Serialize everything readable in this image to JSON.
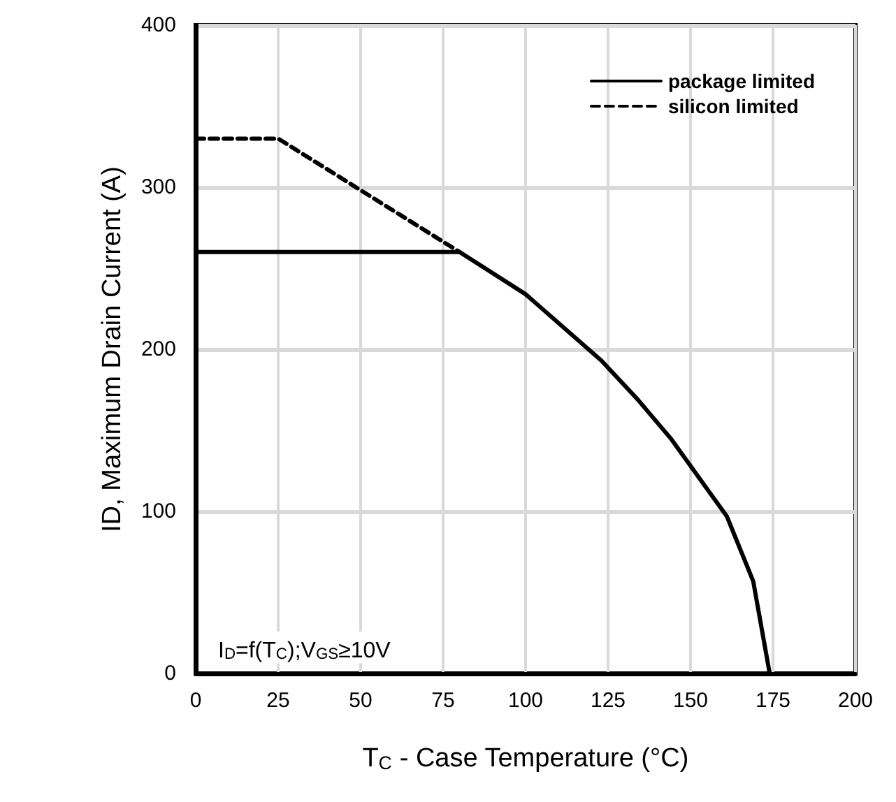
{
  "chart_data": {
    "type": "line",
    "xlabel": "T$_{C}$ - Case Temperature (°C)",
    "ylabel": "ID, Maximum Drain Current (A)",
    "annotations": [
      "I$_{D}$=f(T$_{C}$);V$_{GS}$≥10V"
    ],
    "series": [
      {
        "name": "package limited",
        "color": "#000000",
        "line_style": "solid",
        "x": [
          0,
          80,
          100,
          123,
          134,
          144,
          161,
          169,
          174
        ],
        "values": [
          260,
          260,
          234,
          193,
          169,
          145,
          97,
          57,
          0
        ]
      },
      {
        "name": "silicon limited",
        "color": "#000000",
        "line_style": "dashed",
        "x": [
          0,
          25,
          80
        ],
        "values": [
          330,
          330,
          260
        ]
      }
    ],
    "xlim": [
      0,
      200
    ],
    "xticks": [
      0,
      25,
      50,
      75,
      100,
      125,
      150,
      175,
      200
    ],
    "ylim": [
      0,
      400
    ],
    "yticks": [
      0,
      100,
      200,
      300,
      400
    ],
    "grid": true,
    "legend": "top right",
    "marker": "none"
  }
}
